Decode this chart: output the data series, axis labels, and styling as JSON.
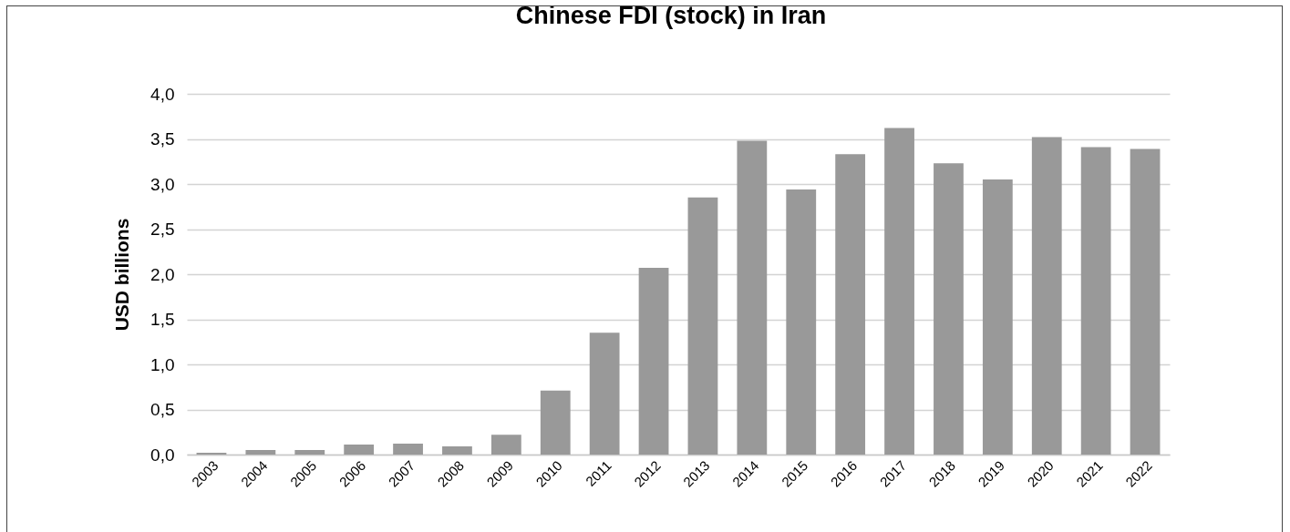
{
  "chart_data": {
    "type": "bar",
    "title": "Chinese FDI (stock) in Iran",
    "ylabel": "USD billions",
    "categories": [
      "2003",
      "2004",
      "2005",
      "2006",
      "2007",
      "2008",
      "2009",
      "2010",
      "2011",
      "2012",
      "2013",
      "2014",
      "2015",
      "2016",
      "2017",
      "2018",
      "2019",
      "2020",
      "2021",
      "2022"
    ],
    "values": [
      0.02,
      0.05,
      0.05,
      0.11,
      0.12,
      0.09,
      0.22,
      0.71,
      1.35,
      2.07,
      2.85,
      3.48,
      2.94,
      3.33,
      3.62,
      3.23,
      3.05,
      3.52,
      3.41,
      3.39
    ],
    "color": "#999999",
    "ylim": [
      0,
      4
    ],
    "yticks": [
      {
        "value": 0,
        "label": "0,0"
      },
      {
        "value": 0.5,
        "label": "0,5"
      },
      {
        "value": 1,
        "label": "1,0"
      },
      {
        "value": 1.5,
        "label": "1,5"
      },
      {
        "value": 2,
        "label": "2,0"
      },
      {
        "value": 2.5,
        "label": "2,5"
      },
      {
        "value": 3,
        "label": "3,0"
      },
      {
        "value": 3.5,
        "label": "3,5"
      },
      {
        "value": 4,
        "label": "4,0"
      }
    ],
    "grid": true
  }
}
